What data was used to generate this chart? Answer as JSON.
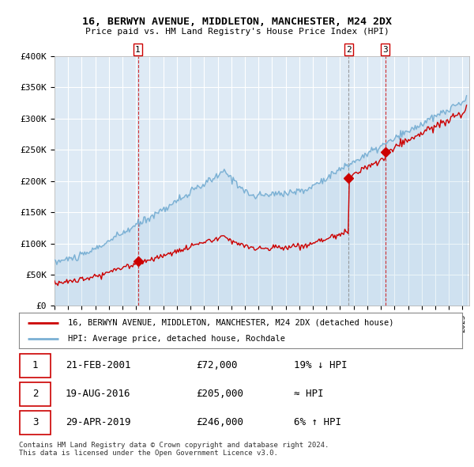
{
  "title": "16, BERWYN AVENUE, MIDDLETON, MANCHESTER, M24 2DX",
  "subtitle": "Price paid vs. HM Land Registry's House Price Index (HPI)",
  "ylabel_ticks": [
    "£0",
    "£50K",
    "£100K",
    "£150K",
    "£200K",
    "£250K",
    "£300K",
    "£350K",
    "£400K"
  ],
  "ylim": [
    0,
    400000
  ],
  "xlim_start": 1995.0,
  "xlim_end": 2025.5,
  "sales": [
    {
      "date_num": 2001.13,
      "price": 72000,
      "label": "1",
      "vline_style": "dashed_red"
    },
    {
      "date_num": 2016.63,
      "price": 205000,
      "label": "2",
      "vline_style": "dashed_gray"
    },
    {
      "date_num": 2019.33,
      "price": 246000,
      "label": "3",
      "vline_style": "dashed_red"
    }
  ],
  "legend_property_label": "16, BERWYN AVENUE, MIDDLETON, MANCHESTER, M24 2DX (detached house)",
  "legend_hpi_label": "HPI: Average price, detached house, Rochdale",
  "table_rows": [
    {
      "num": "1",
      "date": "21-FEB-2001",
      "price": "£72,000",
      "hpi_note": "19% ↓ HPI"
    },
    {
      "num": "2",
      "date": "19-AUG-2016",
      "price": "£205,000",
      "hpi_note": "≈ HPI"
    },
    {
      "num": "3",
      "date": "29-APR-2019",
      "price": "£246,000",
      "hpi_note": "6% ↑ HPI"
    }
  ],
  "footer": "Contains HM Land Registry data © Crown copyright and database right 2024.\nThis data is licensed under the Open Government Licence v3.0.",
  "property_line_color": "#cc0000",
  "hpi_line_color": "#7ab0d4",
  "vline_red_color": "#cc0000",
  "vline_gray_color": "#888888",
  "background_color": "#ffffff",
  "plot_bg_color": "#deeaf5",
  "grid_color": "#ffffff"
}
